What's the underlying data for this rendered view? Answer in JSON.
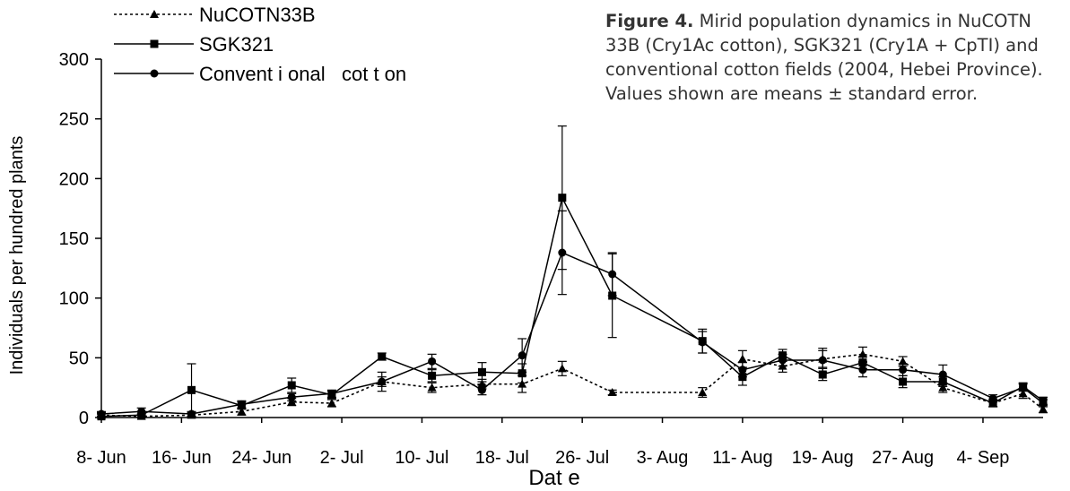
{
  "caption": {
    "label": "Figure 4.",
    "text": "Mirid population dynamics in NuCOTN 33B (Cry1Ac cotton), SGK321 (Cry1A + CpTI) and conventional cotton fields (2004, Hebei Province). Values shown are means ± standard error."
  },
  "chart_data": {
    "type": "line",
    "title": "",
    "xlabel": "Dat e",
    "ylabel": "Individuals per hundred plants",
    "ylim": [
      0,
      300
    ],
    "yticks": [
      0,
      50,
      100,
      150,
      200,
      250,
      300
    ],
    "x_tick_labels": [
      "8- Jun",
      "16- Jun",
      "24- Jun",
      "2- Jul",
      "10- Jul",
      "18- Jul",
      "26- Jul",
      "3- Aug",
      "11- Aug",
      "19- Aug",
      "27- Aug",
      "4- Sep"
    ],
    "x_ticks": [
      "2004-06-08",
      "2004-06-16",
      "2004-06-24",
      "2004-07-02",
      "2004-07-10",
      "2004-07-18",
      "2004-07-26",
      "2004-08-03",
      "2004-08-11",
      "2004-08-19",
      "2004-08-27",
      "2004-09-04"
    ],
    "xlim": [
      "2004-06-08",
      "2004-09-10"
    ],
    "grid": false,
    "legend_position": "top-left",
    "series": [
      {
        "name": "NuCOTN33B",
        "marker": "triangle",
        "line": "dotted",
        "color": "#000000",
        "x": [
          "2004-06-08",
          "2004-06-12",
          "2004-06-17",
          "2004-06-22",
          "2004-06-27",
          "2004-07-01",
          "2004-07-06",
          "2004-07-11",
          "2004-07-16",
          "2004-07-20",
          "2004-07-24",
          "2004-07-29",
          "2004-08-07",
          "2004-08-11",
          "2004-08-15",
          "2004-08-19",
          "2004-08-23",
          "2004-08-27",
          "2004-08-31",
          "2004-09-05",
          "2004-09-08",
          "2004-09-10"
        ],
        "y": [
          2,
          1,
          2,
          5,
          13,
          12,
          30,
          25,
          28,
          28,
          41,
          21,
          21,
          49,
          43,
          49,
          53,
          47,
          25,
          12,
          20,
          7
        ],
        "error": [
          2,
          2,
          2,
          3,
          3,
          3,
          4,
          4,
          4,
          7,
          6,
          2,
          4,
          7,
          5,
          7,
          6,
          4,
          4,
          3,
          4,
          3
        ]
      },
      {
        "name": "SGK321",
        "marker": "square",
        "line": "solid",
        "color": "#000000",
        "x": [
          "2004-06-08",
          "2004-06-12",
          "2004-06-17",
          "2004-06-22",
          "2004-06-27",
          "2004-07-01",
          "2004-07-06",
          "2004-07-11",
          "2004-07-16",
          "2004-07-20",
          "2004-07-24",
          "2004-07-29",
          "2004-08-07",
          "2004-08-11",
          "2004-08-15",
          "2004-08-19",
          "2004-08-23",
          "2004-08-27",
          "2004-08-31",
          "2004-09-05",
          "2004-09-08",
          "2004-09-10"
        ],
        "y": [
          1,
          2,
          23,
          10,
          27,
          19,
          51,
          35,
          38,
          37,
          184,
          102,
          64,
          34,
          52,
          36,
          46,
          30,
          30,
          12,
          26,
          14
        ],
        "error": [
          2,
          3,
          22,
          3,
          6,
          3,
          3,
          5,
          8,
          8,
          60,
          35,
          10,
          7,
          5,
          5,
          5,
          5,
          4,
          3,
          3,
          3
        ]
      },
      {
        "name": "Convent i onal   cot t on",
        "marker": "circle",
        "line": "solid",
        "color": "#000000",
        "x": [
          "2004-06-08",
          "2004-06-12",
          "2004-06-17",
          "2004-06-22",
          "2004-06-27",
          "2004-07-01",
          "2004-07-06",
          "2004-07-11",
          "2004-07-16",
          "2004-07-20",
          "2004-07-24",
          "2004-07-29",
          "2004-08-07",
          "2004-08-11",
          "2004-08-15",
          "2004-08-19",
          "2004-08-23",
          "2004-08-27",
          "2004-08-31",
          "2004-09-05",
          "2004-09-08",
          "2004-09-10"
        ],
        "y": [
          3,
          5,
          3,
          11,
          17,
          20,
          30,
          47,
          23,
          52,
          138,
          120,
          63,
          40,
          48,
          48,
          40,
          40,
          36,
          16,
          25,
          12
        ],
        "error": [
          2,
          3,
          2,
          3,
          3,
          3,
          8,
          6,
          4,
          14,
          35,
          18,
          9,
          6,
          5,
          10,
          6,
          5,
          8,
          3,
          3,
          3
        ]
      }
    ]
  }
}
